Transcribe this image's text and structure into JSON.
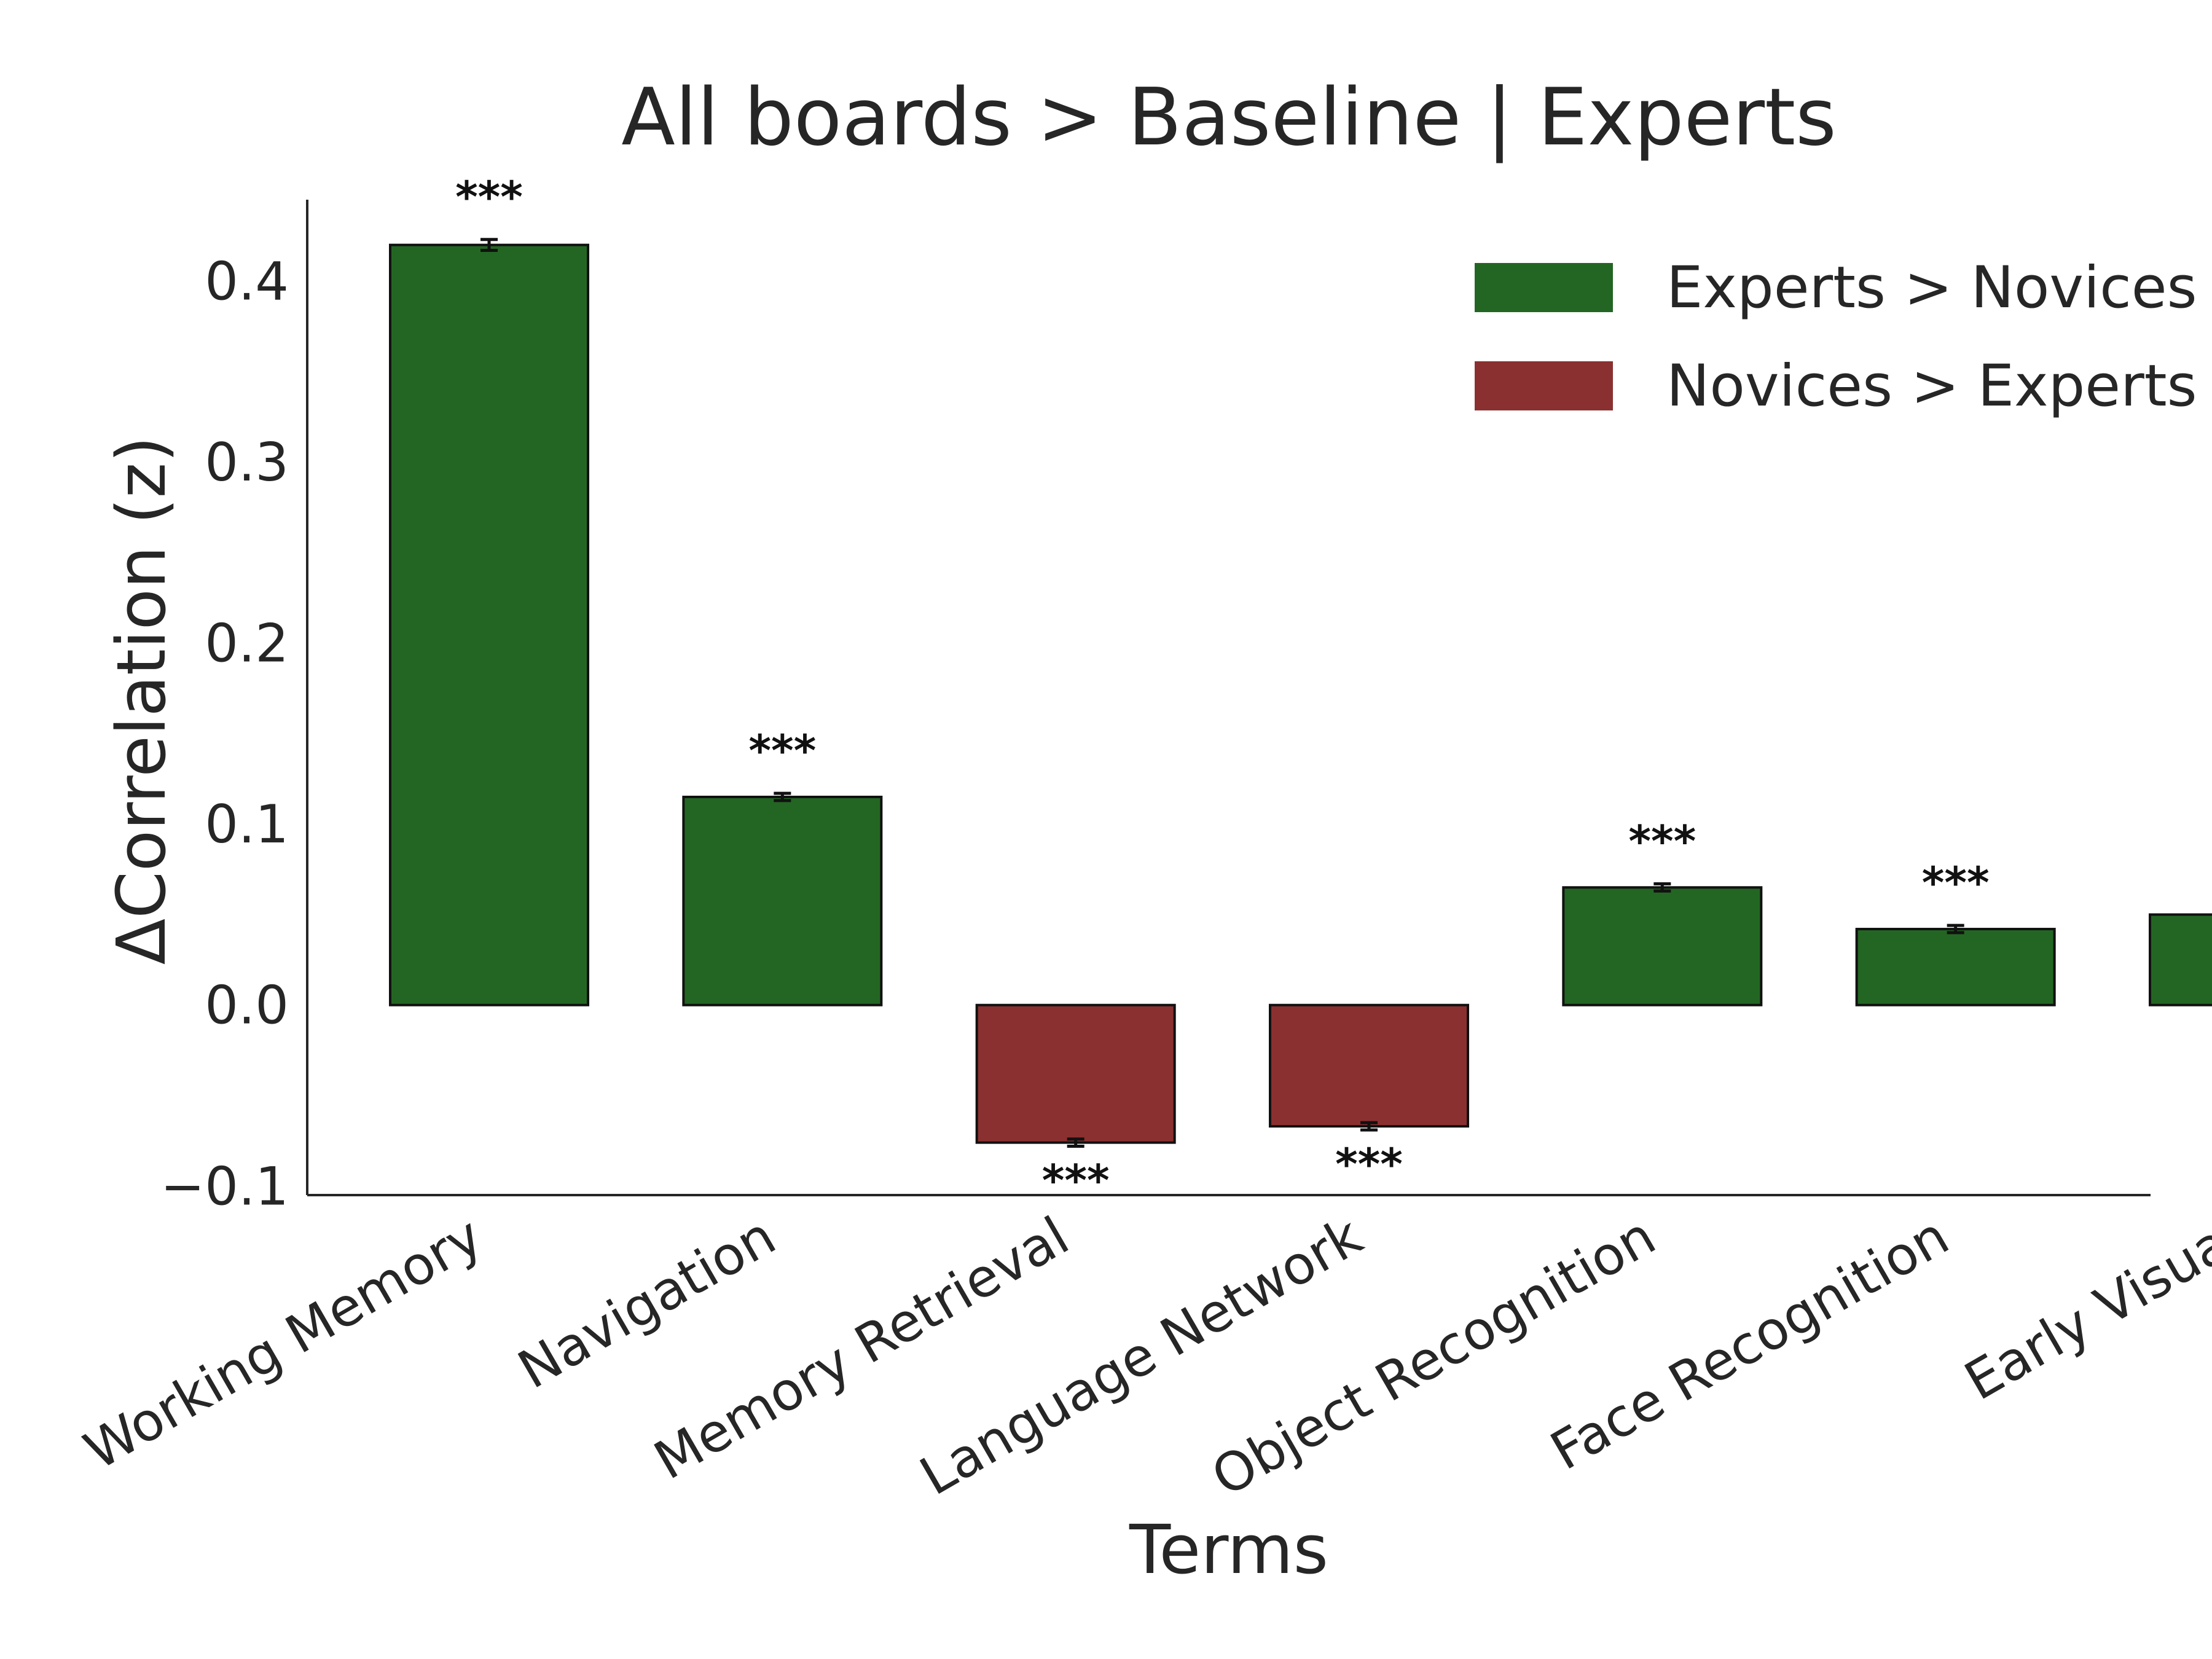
{
  "chart_data": {
    "type": "bar",
    "title": "All boards > Baseline | Experts",
    "xlabel": "Terms",
    "ylabel": "ΔCorrelation (z)",
    "ylim": [
      -0.105,
      0.445
    ],
    "yticks": [
      -0.1,
      0.0,
      0.1,
      0.2,
      0.3,
      0.4
    ],
    "ytick_labels": [
      "−0.1",
      "0.0",
      "0.1",
      "0.2",
      "0.3",
      "0.4"
    ],
    "categories": [
      "Working Memory",
      "Navigation",
      "Memory Retrieval",
      "Language Network",
      "Object Recognition",
      "Face Recognition",
      "Early Visual"
    ],
    "values": [
      0.42,
      0.115,
      -0.076,
      -0.067,
      0.065,
      0.042,
      0.05
    ],
    "errors": [
      0.003,
      0.002,
      0.002,
      0.002,
      0.002,
      0.002,
      0.002
    ],
    "significance": [
      "***",
      "***",
      "***",
      "***",
      "***",
      "***",
      "***"
    ],
    "grid": false,
    "legend": {
      "placement": "top-right",
      "entries": [
        {
          "label": "Experts > Novices",
          "color": "#236623"
        },
        {
          "label": "Novices > Experts",
          "color": "#8b3030"
        }
      ]
    },
    "colors": {
      "positive": "#236623",
      "negative": "#8b3030"
    }
  }
}
